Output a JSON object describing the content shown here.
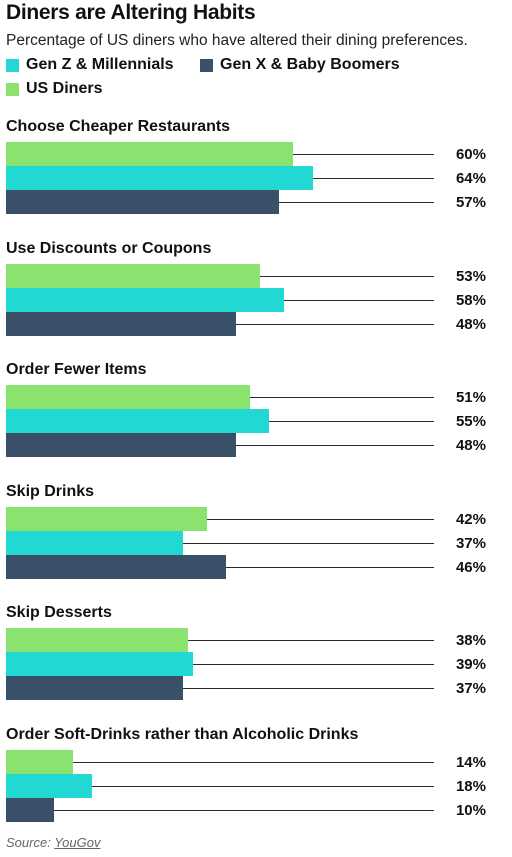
{
  "header": {
    "title": "Diners are Altering Habits",
    "subtitle": "Percentage of US diners who have altered their dining preferences."
  },
  "legend": [
    {
      "label": "Gen Z & Millennials",
      "color": "#22d8d3"
    },
    {
      "label": "Gen X & Baby Boomers",
      "color": "#3a5068"
    },
    {
      "label": "US Diners",
      "color": "#8be36f"
    }
  ],
  "chart_data": {
    "type": "bar",
    "orientation": "horizontal",
    "unit": "%",
    "xlim": [
      0,
      100
    ],
    "categories": [
      "Choose Cheaper Restaurants",
      "Use Discounts or Coupons",
      "Order Fewer Items",
      "Skip Drinks",
      "Skip Desserts",
      "Order Soft-Drinks rather than Alcoholic Drinks"
    ],
    "series": [
      {
        "name": "US Diners",
        "color": "#8be36f",
        "values": [
          60,
          53,
          51,
          42,
          38,
          14
        ]
      },
      {
        "name": "Gen Z & Millennials",
        "color": "#22d8d3",
        "values": [
          64,
          58,
          55,
          37,
          39,
          18
        ]
      },
      {
        "name": "Gen X & Baby Boomers",
        "color": "#3a5068",
        "values": [
          57,
          48,
          48,
          46,
          37,
          10
        ]
      }
    ]
  },
  "footer": {
    "source_prefix": "Source: ",
    "source_name": "YouGov"
  }
}
